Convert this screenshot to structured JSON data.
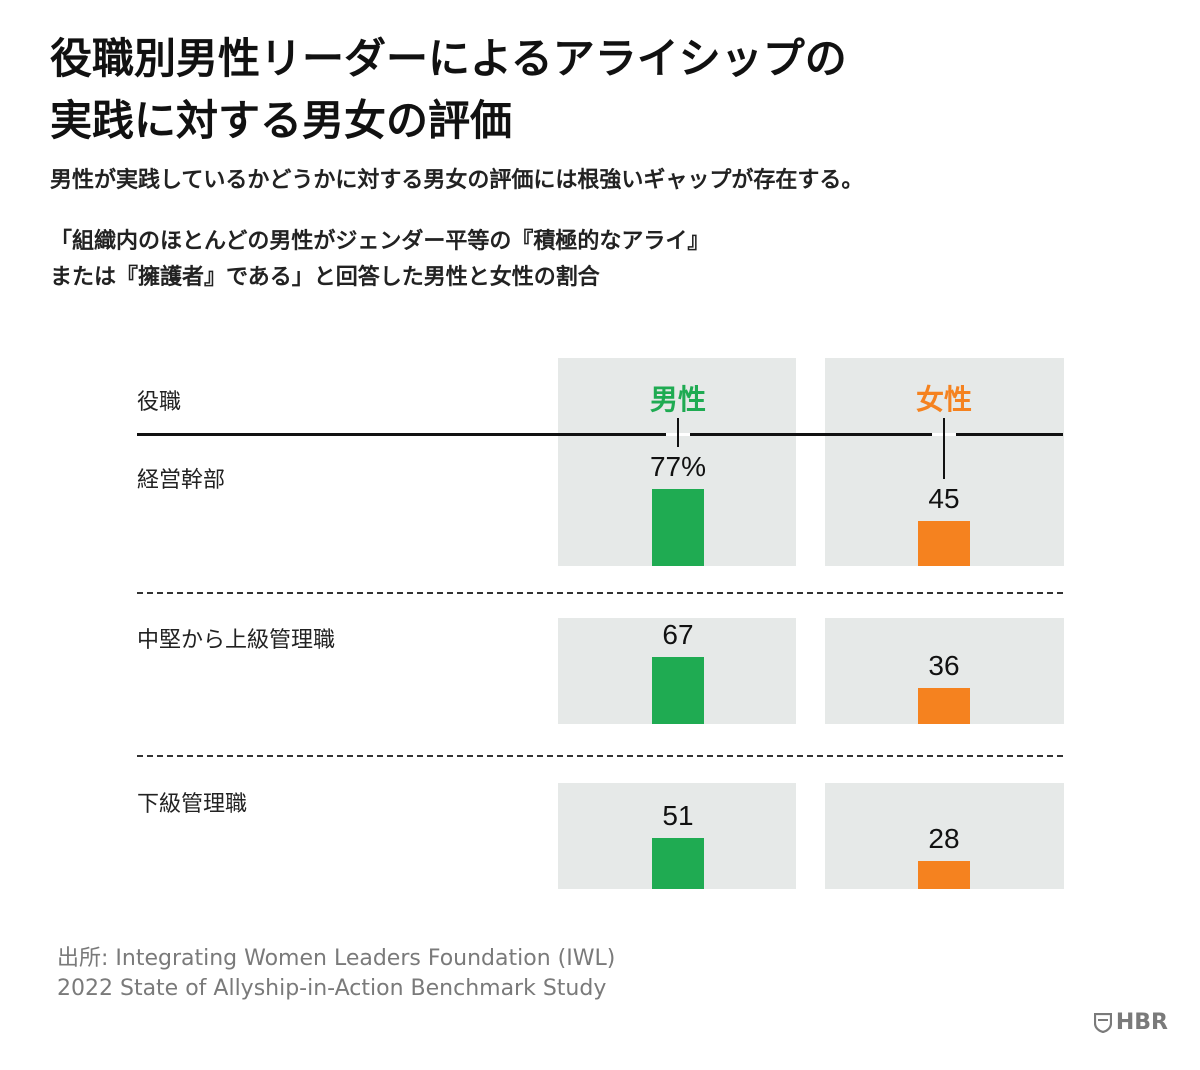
{
  "title_lines": [
    "役職別男性リーダーによるアライシップの",
    "実践に対する男女の評価"
  ],
  "subtitle": "男性が実践しているかどうかに対する男女の評価には根強いギャップが存在する。",
  "question_lines": [
    "「組織内のほとんどの男性がジェンダー平等の『積極的なアライ』",
    "または『擁護者』である」と回答した男性と女性の割合"
  ],
  "source_lines": [
    "出所: Integrating Women Leaders Foundation (IWL)",
    "2022 State of Allyship-in-Action Benchmark Study"
  ],
  "logo_text": "HBR",
  "colors": {
    "men": "#1fab52",
    "women": "#f5821f",
    "panel": "#e6e9e8"
  },
  "chart_data": {
    "type": "bar",
    "column_header": "役職",
    "categories": [
      "経営幹部",
      "中堅から上級管理職",
      "下級管理職"
    ],
    "series": [
      {
        "name": "男性",
        "values": [
          77,
          67,
          51
        ],
        "labels": [
          "77%",
          "67",
          "51"
        ]
      },
      {
        "name": "女性",
        "values": [
          45,
          36,
          28
        ],
        "labels": [
          "45",
          "36",
          "28"
        ]
      }
    ],
    "unit": "%",
    "ylim": [
      0,
      100
    ]
  }
}
